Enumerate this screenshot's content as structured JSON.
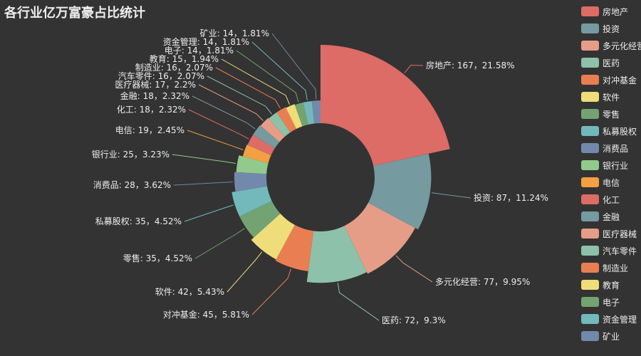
{
  "chart_data": {
    "type": "pie",
    "variant": "rose-donut",
    "title": "各行业亿万富豪占比统计",
    "legend_position": "right",
    "series": [
      {
        "name": "房地产",
        "value": 167,
        "percent": "21.58%",
        "color": "#dd6b66"
      },
      {
        "name": "投资",
        "value": 87,
        "percent": "11.24%",
        "color": "#759aa0"
      },
      {
        "name": "多元化经营",
        "value": 77,
        "percent": "9.95%",
        "color": "#e69d87"
      },
      {
        "name": "医药",
        "value": 72,
        "percent": "9.3%",
        "color": "#8dc1a9"
      },
      {
        "name": "对冲基金",
        "value": 45,
        "percent": "5.81%",
        "color": "#ea7e53"
      },
      {
        "name": "软件",
        "value": 42,
        "percent": "5.43%",
        "color": "#eedd78"
      },
      {
        "name": "零售",
        "value": 35,
        "percent": "4.52%",
        "color": "#73a373"
      },
      {
        "name": "私募股权",
        "value": 35,
        "percent": "4.52%",
        "color": "#73b9bc"
      },
      {
        "name": "消费品",
        "value": 28,
        "percent": "3.62%",
        "color": "#7289ab"
      },
      {
        "name": "银行业",
        "value": 25,
        "percent": "3.23%",
        "color": "#91ca8c"
      },
      {
        "name": "电信",
        "value": 19,
        "percent": "2.45%",
        "color": "#f49f42"
      },
      {
        "name": "化工",
        "value": 18,
        "percent": "2.32%",
        "color": "#dd6b66"
      },
      {
        "name": "金融",
        "value": 18,
        "percent": "2.32%",
        "color": "#759aa0"
      },
      {
        "name": "医疗器械",
        "value": 17,
        "percent": "2.2%",
        "color": "#e69d87"
      },
      {
        "name": "汽车零件",
        "value": 16,
        "percent": "2.07%",
        "color": "#8dc1a9"
      },
      {
        "name": "制造业",
        "value": 16,
        "percent": "2.07%",
        "color": "#ea7e53"
      },
      {
        "name": "教育",
        "value": 15,
        "percent": "1.94%",
        "color": "#eedd78"
      },
      {
        "name": "电子",
        "value": 14,
        "percent": "1.81%",
        "color": "#73a373"
      },
      {
        "name": "资金管理",
        "value": 14,
        "percent": "1.81%",
        "color": "#73b9bc"
      },
      {
        "name": "矿业",
        "value": 14,
        "percent": "1.81%",
        "color": "#7289ab"
      }
    ]
  }
}
